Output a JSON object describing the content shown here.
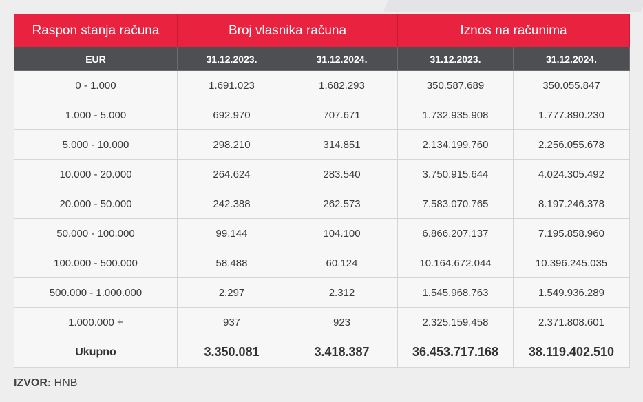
{
  "header": {
    "col1": "Raspon stanja računa",
    "group1": "Broj vlasnika računa",
    "group2": "Iznos na računima",
    "unit": "EUR",
    "dates": [
      "31.12.2023.",
      "31.12.2024.",
      "31.12.2023.",
      "31.12.2024."
    ]
  },
  "rows": [
    {
      "range": "0 - 1.000",
      "c2023": "1.691.023",
      "c2024": "1.682.293",
      "a2023": "350.587.689",
      "a2024": "350.055.847"
    },
    {
      "range": "1.000 - 5.000",
      "c2023": "692.970",
      "c2024": "707.671",
      "a2023": "1.732.935.908",
      "a2024": "1.777.890.230"
    },
    {
      "range": "5.000 - 10.000",
      "c2023": "298.210",
      "c2024": "314.851",
      "a2023": "2.134.199.760",
      "a2024": "2.256.055.678"
    },
    {
      "range": "10.000 - 20.000",
      "c2023": "264.624",
      "c2024": "283.540",
      "a2023": "3.750.915.644",
      "a2024": "4.024.305.492"
    },
    {
      "range": "20.000 - 50.000",
      "c2023": "242.388",
      "c2024": "262.573",
      "a2023": "7.583.070.765",
      "a2024": "8.197.246.378"
    },
    {
      "range": "50.000 - 100.000",
      "c2023": "99.144",
      "c2024": "104.100",
      "a2023": "6.866.207.137",
      "a2024": "7.195.858.960"
    },
    {
      "range": "100.000 - 500.000",
      "c2023": "58.488",
      "c2024": "60.124",
      "a2023": "10.164.672.044",
      "a2024": "10.396.245.035"
    },
    {
      "range": "500.000 - 1.000.000",
      "c2023": "2.297",
      "c2024": "2.312",
      "a2023": "1.545.968.763",
      "a2024": "1.549.936.289"
    },
    {
      "range": "1.000.000 +",
      "c2023": "937",
      "c2024": "923",
      "a2023": "2.325.159.458",
      "a2024": "2.371.808.601"
    }
  ],
  "total": {
    "label": "Ukupno",
    "c2023": "3.350.081",
    "c2024": "3.418.387",
    "a2023": "36.453.717.168",
    "a2024": "38.119.402.510"
  },
  "source": {
    "label": "IZVOR:",
    "value": "HNB"
  }
}
